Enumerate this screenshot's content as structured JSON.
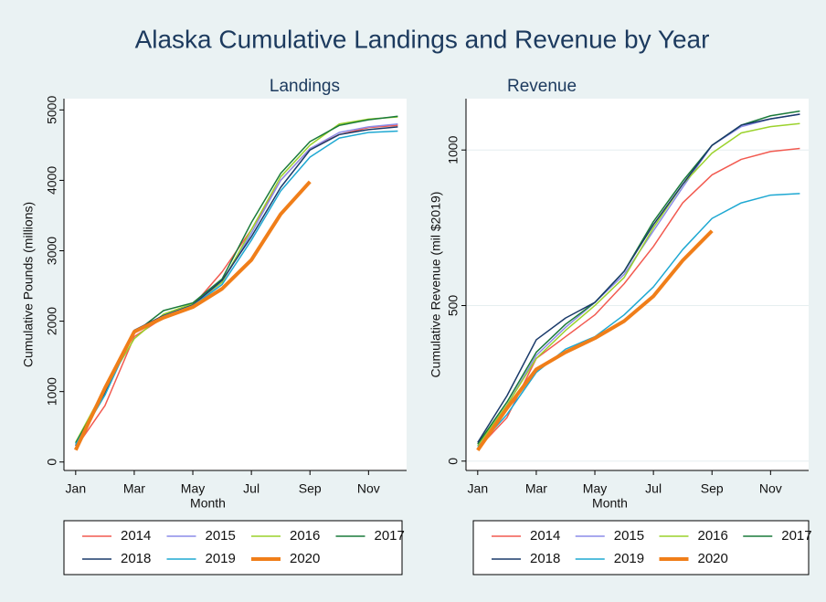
{
  "title": "Alaska Cumulative Landings and Revenue by Year",
  "chart_data": [
    {
      "type": "line",
      "title": "Landings",
      "x_label": "Month",
      "y_label": "Cumulative Pounds (millions)",
      "x": [
        1,
        2,
        3,
        4,
        5,
        6,
        7,
        8,
        9,
        10,
        11,
        12
      ],
      "xlim": [
        0.6,
        12.3
      ],
      "xticks": [
        {
          "value": 1,
          "label": "Jan"
        },
        {
          "value": 3,
          "label": "Mar"
        },
        {
          "value": 5,
          "label": "May"
        },
        {
          "value": 7,
          "label": "Jul"
        },
        {
          "value": 9,
          "label": "Sep"
        },
        {
          "value": 11,
          "label": "Nov"
        }
      ],
      "ylim": [
        -120,
        5160
      ],
      "yticks": [
        0,
        1000,
        2000,
        3000,
        4000,
        5000
      ],
      "grid": false,
      "legend": "bottom",
      "series": [
        {
          "name": "2014",
          "color": "#f25a50",
          "linewidth": 1.5,
          "values": [
            200,
            800,
            1780,
            2050,
            2220,
            2700,
            3300,
            4000,
            4450,
            4650,
            4750,
            4780
          ]
        },
        {
          "name": "2015",
          "color": "#8c8ce8",
          "linewidth": 1.5,
          "values": [
            250,
            1000,
            1830,
            2050,
            2230,
            2550,
            3250,
            4000,
            4450,
            4680,
            4760,
            4800
          ]
        },
        {
          "name": "2016",
          "color": "#9bd22c",
          "linewidth": 1.5,
          "values": [
            280,
            1050,
            1750,
            2100,
            2250,
            2550,
            3300,
            4050,
            4500,
            4800,
            4870,
            4900
          ]
        },
        {
          "name": "2017",
          "color": "#1a7a3a",
          "linewidth": 1.5,
          "values": [
            270,
            1000,
            1830,
            2150,
            2260,
            2600,
            3400,
            4100,
            4550,
            4780,
            4860,
            4910
          ]
        },
        {
          "name": "2018",
          "color": "#1a3a6a",
          "linewidth": 1.5,
          "values": [
            230,
            980,
            1870,
            2080,
            2230,
            2580,
            3200,
            3900,
            4430,
            4650,
            4720,
            4760
          ]
        },
        {
          "name": "2019",
          "color": "#1ea8d2",
          "linewidth": 1.5,
          "values": [
            250,
            950,
            1850,
            2070,
            2220,
            2520,
            3150,
            3850,
            4330,
            4600,
            4680,
            4700
          ]
        },
        {
          "name": "2020",
          "color": "#f07e19",
          "linewidth": 4,
          "values": [
            170,
            1050,
            1850,
            2050,
            2200,
            2460,
            2870,
            3520,
            3980,
            null,
            null,
            null
          ]
        }
      ]
    },
    {
      "type": "line",
      "title": "Revenue",
      "x_label": "Month",
      "y_label": "Cumulative Revenue (mil $2019)",
      "x": [
        1,
        2,
        3,
        4,
        5,
        6,
        7,
        8,
        9,
        10,
        11,
        12
      ],
      "xlim": [
        0.6,
        12.3
      ],
      "xticks": [
        {
          "value": 1,
          "label": "Jan"
        },
        {
          "value": 3,
          "label": "Mar"
        },
        {
          "value": 5,
          "label": "May"
        },
        {
          "value": 7,
          "label": "Jul"
        },
        {
          "value": 9,
          "label": "Sep"
        },
        {
          "value": 11,
          "label": "Nov"
        }
      ],
      "ylim": [
        -30,
        1165
      ],
      "yticks": [
        0,
        500,
        1000
      ],
      "grid": true,
      "legend": "bottom",
      "series": [
        {
          "name": "2014",
          "color": "#f25a50",
          "linewidth": 1.5,
          "values": [
            40,
            140,
            330,
            400,
            470,
            570,
            690,
            830,
            920,
            970,
            995,
            1005
          ]
        },
        {
          "name": "2015",
          "color": "#8c8ce8",
          "linewidth": 1.5,
          "values": [
            50,
            180,
            340,
            430,
            510,
            600,
            740,
            880,
            1015,
            1075,
            1100,
            1115
          ]
        },
        {
          "name": "2016",
          "color": "#9bd22c",
          "linewidth": 1.5,
          "values": [
            50,
            180,
            330,
            420,
            500,
            590,
            750,
            890,
            990,
            1055,
            1075,
            1085
          ]
        },
        {
          "name": "2017",
          "color": "#1a7a3a",
          "linewidth": 1.5,
          "values": [
            55,
            190,
            350,
            440,
            510,
            610,
            770,
            900,
            1015,
            1080,
            1110,
            1125
          ]
        },
        {
          "name": "2018",
          "color": "#1a3a6a",
          "linewidth": 1.5,
          "values": [
            60,
            210,
            390,
            460,
            510,
            610,
            760,
            890,
            1015,
            1080,
            1100,
            1115
          ]
        },
        {
          "name": "2019",
          "color": "#1ea8d2",
          "linewidth": 1.5,
          "values": [
            45,
            150,
            285,
            360,
            400,
            470,
            560,
            680,
            780,
            830,
            855,
            860
          ]
        },
        {
          "name": "2020",
          "color": "#f07e19",
          "linewidth": 4,
          "values": [
            35,
            170,
            295,
            350,
            395,
            450,
            530,
            645,
            740,
            null,
            null,
            null
          ]
        }
      ]
    }
  ]
}
